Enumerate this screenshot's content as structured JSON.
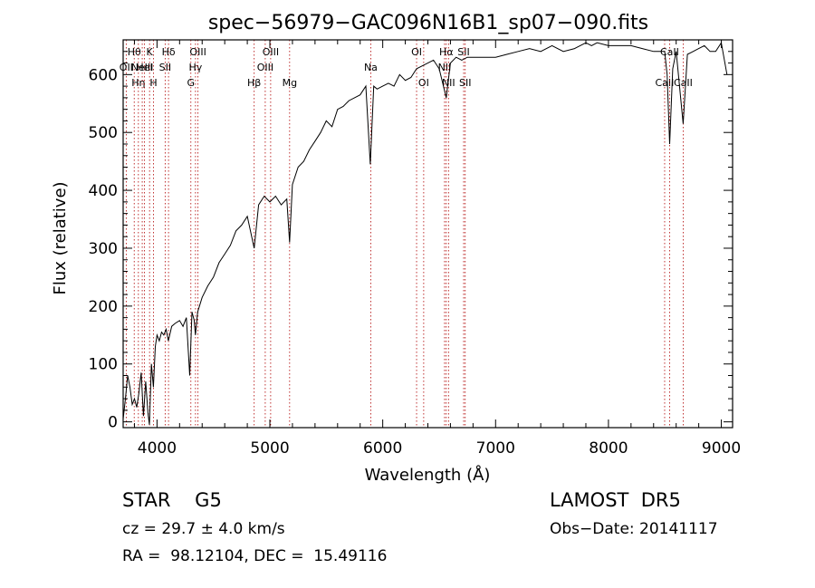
{
  "chart_data": {
    "type": "line",
    "title": "spec−56979−GAC096N16B1_sp07−090.fits",
    "xlabel": "Wavelength (Å)",
    "ylabel": "Flux (relative)",
    "xlim": [
      3700,
      9100
    ],
    "ylim": [
      -10,
      660
    ],
    "x_ticks": [
      4000,
      5000,
      6000,
      7000,
      8000,
      9000
    ],
    "y_ticks": [
      0,
      100,
      200,
      300,
      400,
      500,
      600
    ],
    "grid": false,
    "series": [
      {
        "x": [
          3700,
          3720,
          3740,
          3760,
          3780,
          3800,
          3820,
          3840,
          3860,
          3880,
          3900,
          3920,
          3933,
          3950,
          3968,
          3985,
          4000,
          4020,
          4040,
          4060,
          4080,
          4100,
          4130,
          4160,
          4200,
          4230,
          4260,
          4290,
          4310,
          4330,
          4340,
          4360,
          4400,
          4450,
          4500,
          4550,
          4600,
          4650,
          4700,
          4750,
          4800,
          4861,
          4900,
          4950,
          5000,
          5050,
          5100,
          5150,
          5175,
          5200,
          5250,
          5300,
          5350,
          5400,
          5450,
          5500,
          5550,
          5600,
          5650,
          5700,
          5750,
          5800,
          5850,
          5890,
          5920,
          5950,
          6000,
          6050,
          6100,
          6150,
          6200,
          6250,
          6300,
          6350,
          6400,
          6450,
          6500,
          6563,
          6600,
          6650,
          6700,
          6750,
          6800,
          6900,
          7000,
          7100,
          7200,
          7300,
          7400,
          7500,
          7600,
          7700,
          7800,
          7850,
          7900,
          8000,
          8100,
          8200,
          8300,
          8400,
          8498,
          8520,
          8542,
          8570,
          8600,
          8662,
          8700,
          8750,
          8800,
          8850,
          8900,
          8950,
          9000,
          9050
        ],
        "y": [
          5,
          40,
          80,
          60,
          30,
          40,
          25,
          50,
          85,
          10,
          70,
          15,
          -5,
          100,
          60,
          130,
          150,
          140,
          155,
          150,
          160,
          140,
          165,
          170,
          175,
          165,
          180,
          80,
          190,
          175,
          150,
          190,
          215,
          235,
          250,
          275,
          290,
          305,
          330,
          340,
          355,
          300,
          375,
          390,
          380,
          390,
          375,
          385,
          310,
          410,
          440,
          450,
          470,
          485,
          500,
          520,
          510,
          540,
          545,
          555,
          560,
          565,
          580,
          445,
          580,
          575,
          580,
          585,
          580,
          600,
          590,
          595,
          610,
          615,
          620,
          625,
          610,
          560,
          620,
          630,
          625,
          630,
          630,
          630,
          630,
          635,
          640,
          645,
          640,
          650,
          640,
          645,
          655,
          650,
          655,
          650,
          650,
          650,
          645,
          640,
          640,
          600,
          480,
          610,
          640,
          515,
          635,
          640,
          645,
          650,
          640,
          640,
          655,
          600
        ]
      }
    ],
    "line_annotations": [
      {
        "wave": 3727,
        "labels": [
          "OII"
        ],
        "row": 2
      },
      {
        "wave": 3798,
        "labels": [
          "Hθ"
        ],
        "row": 1
      },
      {
        "wave": 3835,
        "labels": [
          "Hη"
        ],
        "row": 3
      },
      {
        "wave": 3869,
        "labels": [
          "NeIII"
        ],
        "row": 2
      },
      {
        "wave": 3889,
        "labels": [
          "HeI"
        ],
        "row": 2
      },
      {
        "wave": 3934,
        "labels": [
          "K"
        ],
        "row": 1
      },
      {
        "wave": 3969,
        "labels": [
          "H"
        ],
        "row": 3
      },
      {
        "wave": 4072,
        "labels": [
          "SII"
        ],
        "row": 2
      },
      {
        "wave": 4102,
        "labels": [
          "Hδ"
        ],
        "row": 1
      },
      {
        "wave": 4300,
        "labels": [
          "G"
        ],
        "row": 3
      },
      {
        "wave": 4341,
        "labels": [
          "Hγ"
        ],
        "row": 2
      },
      {
        "wave": 4363,
        "labels": [
          "OIII"
        ],
        "row": 1
      },
      {
        "wave": 4861,
        "labels": [
          "Hβ"
        ],
        "row": 3
      },
      {
        "wave": 4959,
        "labels": [
          "OIII"
        ],
        "row": 2
      },
      {
        "wave": 5007,
        "labels": [
          "OIII"
        ],
        "row": 1
      },
      {
        "wave": 5175,
        "labels": [
          "Mg"
        ],
        "row": 3
      },
      {
        "wave": 5894,
        "labels": [
          "Na"
        ],
        "row": 2
      },
      {
        "wave": 6300,
        "labels": [
          "OI"
        ],
        "row": 1
      },
      {
        "wave": 6363,
        "labels": [
          "OI"
        ],
        "row": 3
      },
      {
        "wave": 6548,
        "labels": [
          "NII"
        ],
        "row": 2
      },
      {
        "wave": 6563,
        "labels": [
          "Hα"
        ],
        "row": 1
      },
      {
        "wave": 6583,
        "labels": [
          "NII"
        ],
        "row": 3
      },
      {
        "wave": 6717,
        "labels": [
          "SII"
        ],
        "row": 1
      },
      {
        "wave": 6731,
        "labels": [
          "SII"
        ],
        "row": 3
      },
      {
        "wave": 8498,
        "labels": [
          "CaII"
        ],
        "row": 3
      },
      {
        "wave": 8542,
        "labels": [
          "CaII"
        ],
        "row": 1
      },
      {
        "wave": 8662,
        "labels": [
          "CaII"
        ],
        "row": 3
      }
    ]
  },
  "info": {
    "class_line": "STAR    G5",
    "survey_line": "LAMOST  DR5",
    "cz_line": "cz = 29.7 ± 4.0 km/s",
    "obs_date_line": "Obs−Date: 20141117",
    "coord_line": "RA =  98.12104, DEC =  15.49116"
  }
}
